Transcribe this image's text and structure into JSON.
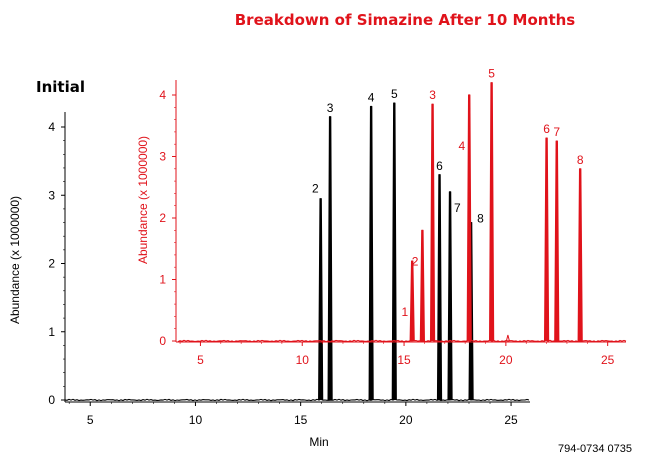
{
  "chart_data": {
    "type": "line",
    "title": "Breakdown of Simazine After 10 Months",
    "footnote": "794-0734 0735",
    "colors": {
      "initial": "#000000",
      "aged": "#e0131b"
    },
    "charts": [
      {
        "id": "initial",
        "label": "Initial",
        "color": "#000000",
        "xlabel": "Min",
        "ylabel": "Abundance  (x 1000000)",
        "xlim": [
          3.8,
          25.9
        ],
        "ylim": [
          0,
          4.4
        ],
        "xticks": [
          5,
          10,
          15,
          20,
          25
        ],
        "yticks": [
          0,
          1,
          2,
          3,
          4
        ],
        "peaks": [
          {
            "label": "2",
            "x": 15.95,
            "y": 2.95
          },
          {
            "label": "3",
            "x": 16.4,
            "y": 4.15
          },
          {
            "label": "4",
            "x": 18.35,
            "y": 4.3
          },
          {
            "label": "5",
            "x": 19.45,
            "y": 4.35
          },
          {
            "label": "6",
            "x": 21.6,
            "y": 3.3
          },
          {
            "label": "7",
            "x": 22.1,
            "y": 3.05
          },
          {
            "label": "8",
            "x": 23.1,
            "y": 2.6
          }
        ]
      },
      {
        "id": "aged",
        "label": "",
        "color": "#e0131b",
        "xlabel": "",
        "ylabel": "Abundance  (x 1000000)",
        "xlim": [
          3.8,
          25.9
        ],
        "ylim": [
          0,
          4.35
        ],
        "xticks": [
          5,
          10,
          15,
          20,
          25
        ],
        "yticks": [
          0,
          1,
          2,
          3,
          4
        ],
        "peaks": [
          {
            "label": "1",
            "x": 15.4,
            "y": 1.3
          },
          {
            "label": "2",
            "x": 15.9,
            "y": 1.8
          },
          {
            "label": "3",
            "x": 16.4,
            "y": 3.85
          },
          {
            "label": "4",
            "x": 18.2,
            "y": 4.0
          },
          {
            "label": "5",
            "x": 19.3,
            "y": 4.2
          },
          {
            "label": "6",
            "x": 22.0,
            "y": 3.3
          },
          {
            "label": "7",
            "x": 22.5,
            "y": 3.25
          },
          {
            "label": "8",
            "x": 23.65,
            "y": 2.8
          }
        ]
      }
    ]
  }
}
